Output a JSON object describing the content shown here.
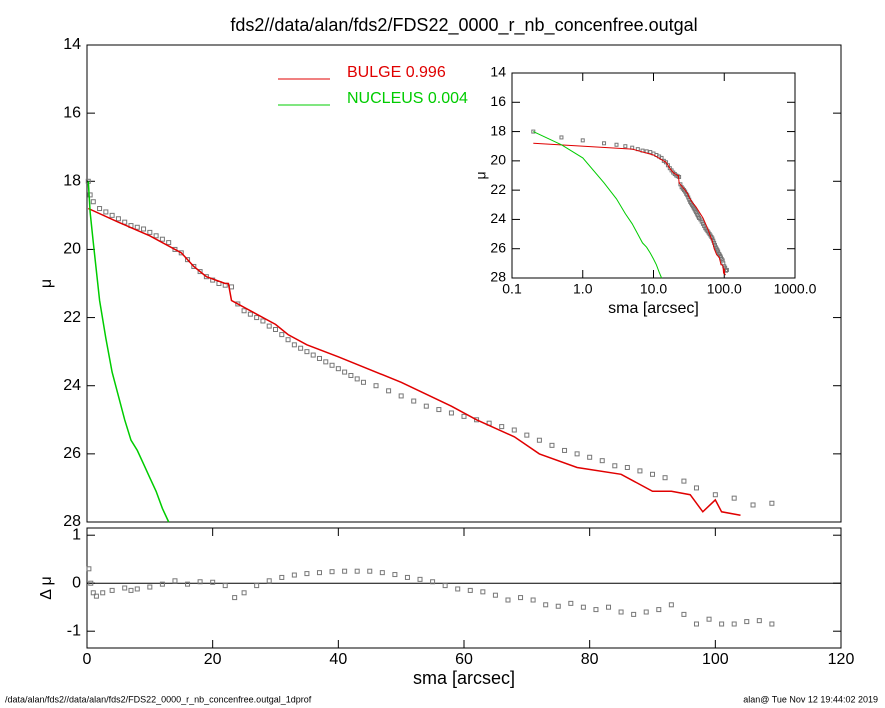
{
  "chart_data": [
    {
      "type": "scatter",
      "title": "fds2//data/alan/fds2/FDS22_0000_r_nb_concenfree.outgal",
      "ylabel": "μ",
      "xlim": [
        0,
        120
      ],
      "ylim": [
        14,
        28
      ],
      "yticks": [
        14,
        16,
        18,
        20,
        22,
        24,
        26,
        28
      ],
      "inverted_y": true,
      "series": [
        {
          "color": "#777777",
          "marker": "square",
          "x": [
            0.2,
            0.5,
            1,
            2,
            3,
            4,
            5,
            6,
            7,
            8,
            9,
            10,
            11,
            12,
            13,
            14,
            15,
            16,
            17,
            18,
            19,
            20,
            21,
            22,
            23,
            24,
            25,
            26,
            27,
            28,
            29,
            30,
            31,
            32,
            33,
            34,
            35,
            36,
            37,
            38,
            39,
            40,
            41,
            42,
            43,
            44,
            46,
            48,
            50,
            52,
            54,
            56,
            58,
            60,
            62,
            64,
            66,
            68,
            70,
            72,
            74,
            76,
            78,
            80,
            82,
            84,
            86,
            88,
            90,
            92,
            95,
            97,
            100,
            103,
            106,
            109
          ],
          "values": [
            18.0,
            18.4,
            18.6,
            18.8,
            18.9,
            19.0,
            19.1,
            19.2,
            19.3,
            19.35,
            19.4,
            19.5,
            19.6,
            19.7,
            19.8,
            20.0,
            20.1,
            20.3,
            20.5,
            20.65,
            20.8,
            20.9,
            21.0,
            21.05,
            21.1,
            21.6,
            21.8,
            21.9,
            22.0,
            22.1,
            22.25,
            22.35,
            22.5,
            22.65,
            22.8,
            22.9,
            23.0,
            23.1,
            23.2,
            23.3,
            23.4,
            23.5,
            23.6,
            23.7,
            23.8,
            23.9,
            24.0,
            24.15,
            24.3,
            24.45,
            24.6,
            24.7,
            24.8,
            24.9,
            25.0,
            25.1,
            25.2,
            25.3,
            25.45,
            25.6,
            25.75,
            25.9,
            26.0,
            26.1,
            26.2,
            26.35,
            26.4,
            26.5,
            26.6,
            26.7,
            26.8,
            27.0,
            27.2,
            27.3,
            27.5,
            27.45
          ]
        },
        {
          "name": "BULGE  0.996",
          "color": "#e00000",
          "x": [
            0.2,
            5,
            10,
            15,
            17,
            19,
            22,
            22.5,
            23,
            30,
            32,
            35,
            40,
            50,
            58,
            62,
            68,
            72,
            78,
            85,
            90,
            93,
            96,
            98,
            100,
            101,
            104
          ],
          "values": [
            18.8,
            19.2,
            19.6,
            20.1,
            20.5,
            20.8,
            21.0,
            21.0,
            21.5,
            22.2,
            22.5,
            22.8,
            23.15,
            23.9,
            24.6,
            25.0,
            25.5,
            26.0,
            26.4,
            26.6,
            27.1,
            27.1,
            27.2,
            27.7,
            27.35,
            27.7,
            27.8
          ]
        },
        {
          "name": "NUCLEUS  0.004",
          "color": "#00cc00",
          "x": [
            0.2,
            0.5,
            1,
            2,
            3,
            4,
            5,
            6,
            7,
            8,
            9,
            10,
            11,
            12,
            13
          ],
          "values": [
            18.0,
            18.9,
            19.8,
            21.5,
            22.6,
            23.6,
            24.3,
            25.0,
            25.6,
            25.9,
            26.3,
            26.7,
            27.1,
            27.6,
            28.0
          ]
        }
      ]
    },
    {
      "type": "scatter",
      "xlabel": "sma [arcsec]",
      "ylabel": "Δ μ",
      "xlim": [
        0,
        120
      ],
      "xticks": [
        0,
        20,
        40,
        60,
        80,
        100,
        120
      ],
      "ylim": [
        -1.35,
        1.15
      ],
      "yticks": [
        1,
        0,
        -1
      ],
      "hline": 0,
      "color": "#777777",
      "x": [
        0.3,
        0.6,
        1,
        1.5,
        2.5,
        4,
        6,
        7,
        8,
        10,
        12,
        14,
        16,
        18,
        20,
        22,
        23.5,
        25,
        27,
        29,
        31,
        33,
        35,
        37,
        39,
        41,
        43,
        45,
        47,
        49,
        51,
        53,
        55,
        57,
        59,
        61,
        63,
        65,
        67,
        69,
        71,
        73,
        75,
        77,
        79,
        81,
        83,
        85,
        87,
        89,
        91,
        93,
        95,
        97,
        99,
        101,
        103,
        105,
        107,
        109
      ],
      "values": [
        0.3,
        0.0,
        -0.2,
        -0.27,
        -0.2,
        -0.15,
        -0.1,
        -0.15,
        -0.12,
        -0.08,
        -0.02,
        0.05,
        -0.02,
        0.03,
        0.02,
        -0.05,
        -0.3,
        -0.2,
        -0.05,
        0.05,
        0.12,
        0.17,
        0.2,
        0.22,
        0.24,
        0.25,
        0.25,
        0.25,
        0.22,
        0.18,
        0.12,
        0.08,
        0.03,
        -0.05,
        -0.12,
        -0.15,
        -0.18,
        -0.25,
        -0.35,
        -0.3,
        -0.35,
        -0.45,
        -0.48,
        -0.42,
        -0.5,
        -0.55,
        -0.5,
        -0.6,
        -0.65,
        -0.6,
        -0.55,
        -0.45,
        -0.65,
        -0.85,
        -0.75,
        -0.85,
        -0.85,
        -0.8,
        -0.78,
        -0.85
      ]
    },
    {
      "type": "inset",
      "xlabel": "sma [arcsec]",
      "ylabel": "μ",
      "log_x": true,
      "xlim": [
        0.1,
        1000
      ],
      "xticks": [
        {
          "value": 0.1,
          "label": "0.1"
        },
        {
          "value": 1,
          "label": "1.0"
        },
        {
          "value": 10,
          "label": "10.0"
        },
        {
          "value": 100,
          "label": "100.0"
        },
        {
          "value": 1000,
          "label": "1000.0"
        }
      ],
      "ylim": [
        14,
        28
      ],
      "yticks": [
        14,
        16,
        18,
        20,
        22,
        24,
        26,
        28
      ],
      "inverted_y": true
    }
  ],
  "footer": {
    "left": "/data/alan/fds2//data/alan/fds2/FDS22_0000_r_nb_concenfree.outgal_1dprof",
    "right": "alan@  Tue Nov 12 19:44:02 2019"
  }
}
